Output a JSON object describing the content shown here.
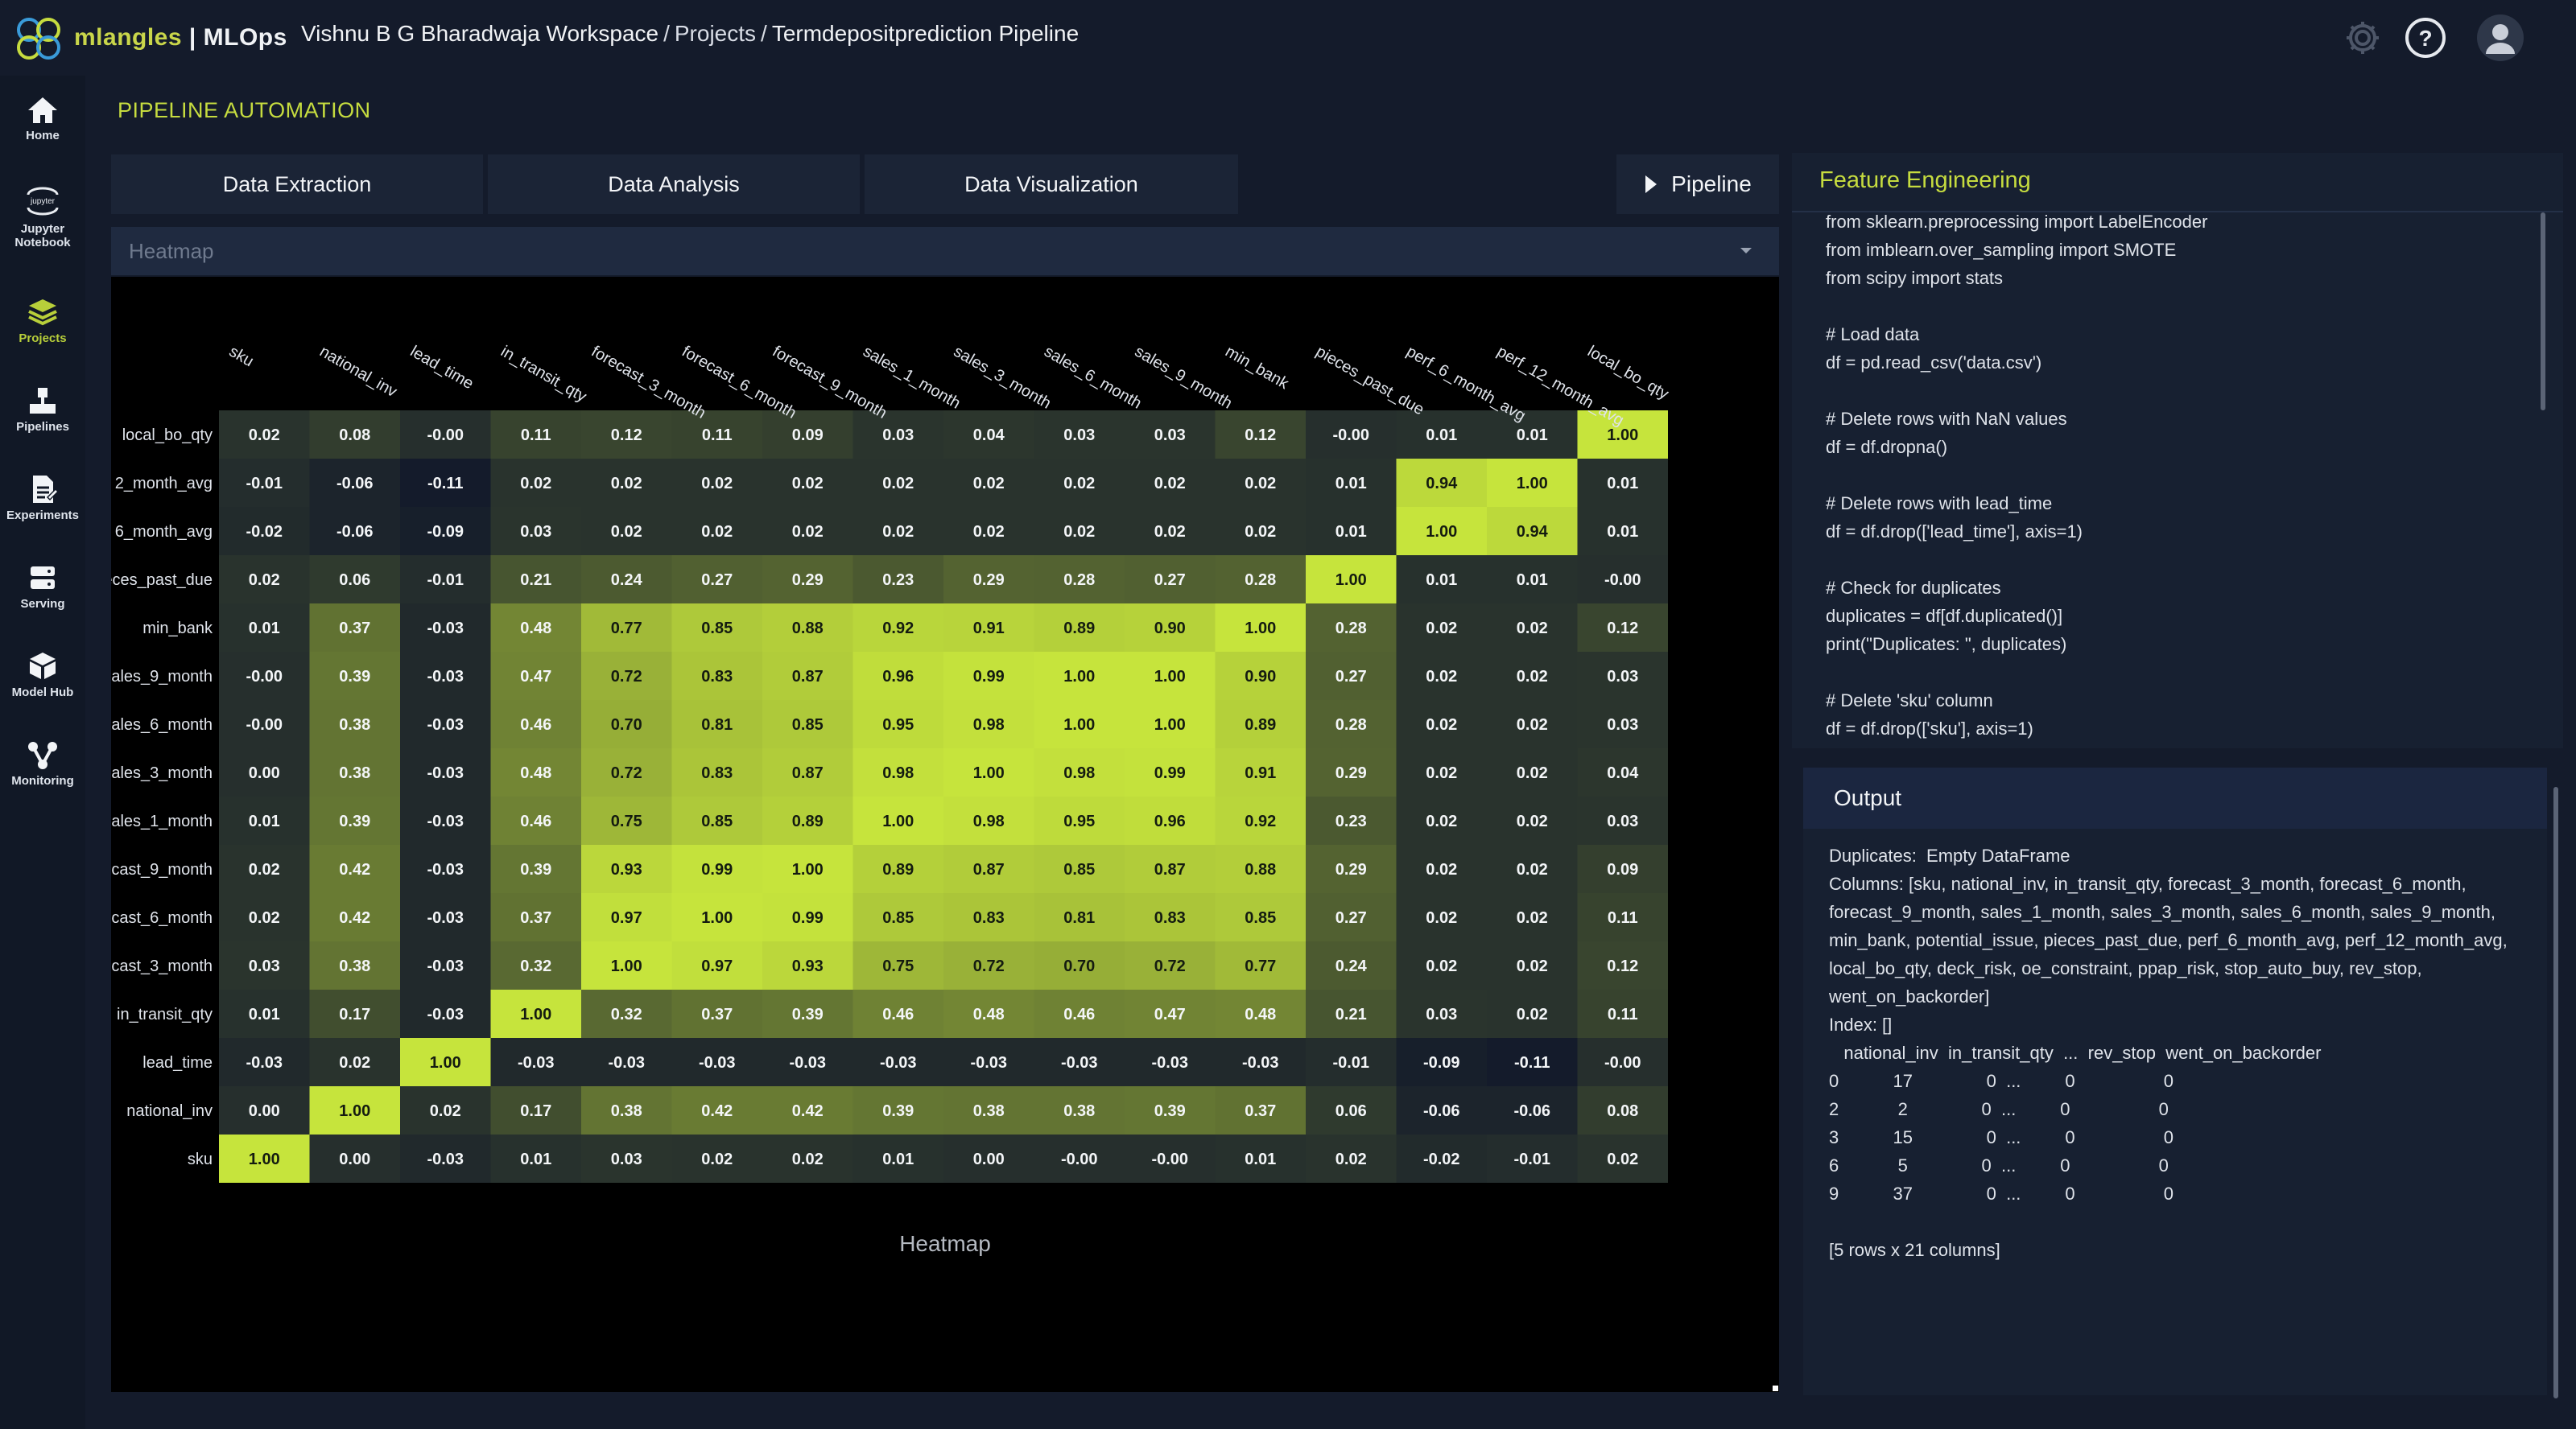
{
  "brand": {
    "name_part1": "mlangles",
    "divider": " | ",
    "name_part2": "MLOps",
    "accent": "#c6dc3f"
  },
  "breadcrumb": {
    "workspace": "Vishnu B G Bharadwaja Workspace",
    "sep1": "/",
    "projects": "Projects",
    "sep2": "/",
    "pipeline": "Termdepositprediction Pipeline"
  },
  "topicons": [
    "gear-icon",
    "help-icon",
    "user-avatar-icon"
  ],
  "sidebar": {
    "items": [
      {
        "label": "Home",
        "icon": "home-icon"
      },
      {
        "label": "Jupyter",
        "label2": "Notebook",
        "icon": "jupyter-icon"
      },
      {
        "label": "Projects",
        "icon": "projects-icon",
        "active": true
      },
      {
        "label": "Pipelines",
        "icon": "pipelines-icon"
      },
      {
        "label": "Experiments",
        "icon": "experiments-icon"
      },
      {
        "label": "Serving",
        "icon": "serving-icon"
      },
      {
        "label": "Model Hub",
        "icon": "model-hub-icon"
      },
      {
        "label": "Monitoring",
        "icon": "monitoring-icon"
      }
    ],
    "jupyter_logo_text": "jupyter"
  },
  "main": {
    "section_title": "PIPELINE AUTOMATION",
    "tabs": [
      "Data Extraction",
      "Data Analysis",
      "Data Visualization"
    ],
    "pipeline_button": "Pipeline",
    "chart_select": {
      "selected": "Heatmap"
    }
  },
  "chart_data": {
    "type": "heatmap",
    "title": "Heatmap",
    "x_labels": [
      "sku",
      "national_inv",
      "lead_time",
      "in_transit_qty",
      "forecast_3_month",
      "forecast_6_month",
      "forecast_9_month",
      "sales_1_month",
      "sales_3_month",
      "sales_6_month",
      "sales_9_month",
      "min_bank",
      "pieces_past_due",
      "perf_6_month_avg",
      "perf_12_month_avg",
      "local_bo_qty"
    ],
    "y_labels": [
      "local_bo_qty",
      "2_month_avg",
      "6_month_avg",
      "eces_past_due",
      "min_bank",
      "ales_9_month",
      "ales_6_month",
      "ales_3_month",
      "ales_1_month",
      "cast_9_month",
      "cast_6_month",
      "cast_3_month",
      "in_transit_qty",
      "lead_time",
      "national_inv",
      "sku"
    ],
    "values": [
      [
        "0.02",
        "0.08",
        "-0.00",
        "0.11",
        "0.12",
        "0.11",
        "0.09",
        "0.03",
        "0.04",
        "0.03",
        "0.03",
        "0.12",
        "-0.00",
        "0.01",
        "0.01",
        "1.00"
      ],
      [
        "-0.01",
        "-0.06",
        "-0.11",
        "0.02",
        "0.02",
        "0.02",
        "0.02",
        "0.02",
        "0.02",
        "0.02",
        "0.02",
        "0.02",
        "0.01",
        "0.94",
        "1.00",
        "0.01"
      ],
      [
        "-0.02",
        "-0.06",
        "-0.09",
        "0.03",
        "0.02",
        "0.02",
        "0.02",
        "0.02",
        "0.02",
        "0.02",
        "0.02",
        "0.02",
        "0.01",
        "1.00",
        "0.94",
        "0.01"
      ],
      [
        "0.02",
        "0.06",
        "-0.01",
        "0.21",
        "0.24",
        "0.27",
        "0.29",
        "0.23",
        "0.29",
        "0.28",
        "0.27",
        "0.28",
        "1.00",
        "0.01",
        "0.01",
        "-0.00"
      ],
      [
        "0.01",
        "0.37",
        "-0.03",
        "0.48",
        "0.77",
        "0.85",
        "0.88",
        "0.92",
        "0.91",
        "0.89",
        "0.90",
        "1.00",
        "0.28",
        "0.02",
        "0.02",
        "0.12"
      ],
      [
        "-0.00",
        "0.39",
        "-0.03",
        "0.47",
        "0.72",
        "0.83",
        "0.87",
        "0.96",
        "0.99",
        "1.00",
        "1.00",
        "0.90",
        "0.27",
        "0.02",
        "0.02",
        "0.03"
      ],
      [
        "-0.00",
        "0.38",
        "-0.03",
        "0.46",
        "0.70",
        "0.81",
        "0.85",
        "0.95",
        "0.98",
        "1.00",
        "1.00",
        "0.89",
        "0.28",
        "0.02",
        "0.02",
        "0.03"
      ],
      [
        "0.00",
        "0.38",
        "-0.03",
        "0.48",
        "0.72",
        "0.83",
        "0.87",
        "0.98",
        "1.00",
        "0.98",
        "0.99",
        "0.91",
        "0.29",
        "0.02",
        "0.02",
        "0.04"
      ],
      [
        "0.01",
        "0.39",
        "-0.03",
        "0.46",
        "0.75",
        "0.85",
        "0.89",
        "1.00",
        "0.98",
        "0.95",
        "0.96",
        "0.92",
        "0.23",
        "0.02",
        "0.02",
        "0.03"
      ],
      [
        "0.02",
        "0.42",
        "-0.03",
        "0.39",
        "0.93",
        "0.99",
        "1.00",
        "0.89",
        "0.87",
        "0.85",
        "0.87",
        "0.88",
        "0.29",
        "0.02",
        "0.02",
        "0.09"
      ],
      [
        "0.02",
        "0.42",
        "-0.03",
        "0.37",
        "0.97",
        "1.00",
        "0.99",
        "0.85",
        "0.83",
        "0.81",
        "0.83",
        "0.85",
        "0.27",
        "0.02",
        "0.02",
        "0.11"
      ],
      [
        "0.03",
        "0.38",
        "-0.03",
        "0.32",
        "1.00",
        "0.97",
        "0.93",
        "0.75",
        "0.72",
        "0.70",
        "0.72",
        "0.77",
        "0.24",
        "0.02",
        "0.02",
        "0.12"
      ],
      [
        "0.01",
        "0.17",
        "-0.03",
        "1.00",
        "0.32",
        "0.37",
        "0.39",
        "0.46",
        "0.48",
        "0.46",
        "0.47",
        "0.48",
        "0.21",
        "0.03",
        "0.02",
        "0.11"
      ],
      [
        "-0.03",
        "0.02",
        "1.00",
        "-0.03",
        "-0.03",
        "-0.03",
        "-0.03",
        "-0.03",
        "-0.03",
        "-0.03",
        "-0.03",
        "-0.03",
        "-0.01",
        "-0.09",
        "-0.11",
        "-0.00"
      ],
      [
        "0.00",
        "1.00",
        "0.02",
        "0.17",
        "0.38",
        "0.42",
        "0.42",
        "0.39",
        "0.38",
        "0.38",
        "0.39",
        "0.37",
        "0.06",
        "-0.06",
        "-0.06",
        "0.08"
      ],
      [
        "1.00",
        "0.00",
        "-0.03",
        "0.01",
        "0.03",
        "0.02",
        "0.02",
        "0.01",
        "0.00",
        "-0.00",
        "-0.00",
        "0.01",
        "0.02",
        "-0.02",
        "-0.01",
        "0.02"
      ]
    ],
    "color_low": "#141b2b",
    "color_high": "#c6e43c"
  },
  "feature_engineering": {
    "title": "Feature Engineering",
    "code": "from sklearn.preprocessing import LabelEncoder\nfrom imblearn.over_sampling import SMOTE\nfrom scipy import stats\n\n# Load data\ndf = pd.read_csv('data.csv')\n\n# Delete rows with NaN values\ndf = df.dropna()\n\n# Delete rows with lead_time\ndf = df.drop(['lead_time'], axis=1)\n\n# Check for duplicates\nduplicates = df[df.duplicated()]\nprint(\"Duplicates: \", duplicates)\n\n# Delete 'sku' column\ndf = df.drop(['sku'], axis=1)"
  },
  "output": {
    "title": "Output",
    "text": "Duplicates:  Empty DataFrame\nColumns: [sku, national_inv, in_transit_qty, forecast_3_month, forecast_6_month, forecast_9_month, sales_1_month, sales_3_month, sales_6_month, sales_9_month, min_bank, potential_issue, pieces_past_due, perf_6_month_avg, perf_12_month_avg, local_bo_qty, deck_risk, oe_constraint, ppap_risk, stop_auto_buy, rev_stop, went_on_backorder]\nIndex: []\n   national_inv  in_transit_qty  ...  rev_stop  went_on_backorder\n0           17               0  ...         0                  0\n2            2               0  ...         0                  0\n3           15               0  ...         0                  0\n6            5               0  ...         0                  0\n9           37               0  ...         0                  0\n\n[5 rows x 21 columns]"
  }
}
